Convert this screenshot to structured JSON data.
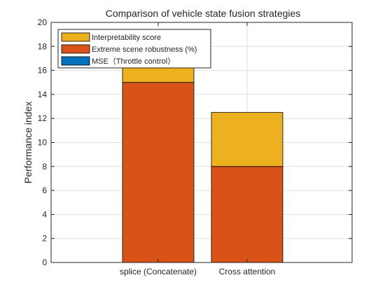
{
  "chart_data": {
    "type": "bar",
    "stacked": true,
    "title": "Comparison of vehicle state fusion strategies",
    "xlabel": "",
    "ylabel": "Performance index",
    "categories": [
      "splice (Concatenate)",
      "Cross attention"
    ],
    "ylim": [
      0,
      20
    ],
    "yticks": [
      0,
      2,
      4,
      6,
      8,
      10,
      12,
      14,
      16,
      18,
      20
    ],
    "grid": true,
    "legend_position": "top-left",
    "series": [
      {
        "name": "MSE（Throttle control）",
        "values": [
          0,
          0
        ],
        "color": "#0072BD"
      },
      {
        "name": "Extreme scene robustness (%)",
        "values": [
          15,
          8
        ],
        "color": "#D95319"
      },
      {
        "name": "Interpretability score",
        "values": [
          4,
          4.5
        ],
        "color": "#EDB120"
      }
    ],
    "legend_order": [
      "Interpretability score",
      "Extreme scene robustness (%)",
      "MSE（Throttle control）"
    ]
  }
}
